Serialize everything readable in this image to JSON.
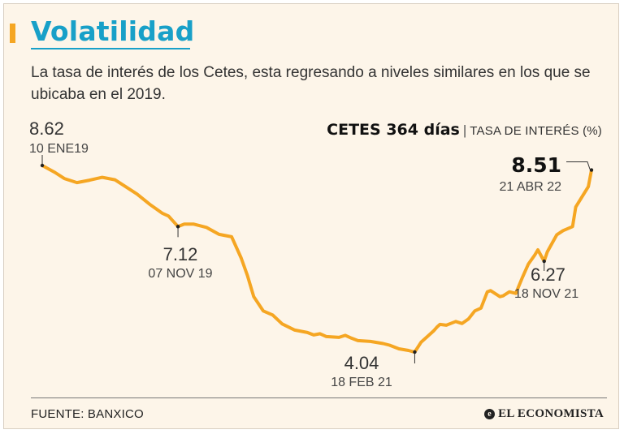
{
  "header": {
    "title": "Volatilidad",
    "subtitle": "La tasa de interés de los Cetes, esta regresando a niveles similares en los que se ubicaba en el 2019."
  },
  "legend": {
    "series": "CETES 364 días",
    "separator": "|",
    "unit": "TASA DE INTERÉS (%)"
  },
  "footer": {
    "source": "FUENTE: BANXICO",
    "brand": "EL ECONOMISTA",
    "brand_icon": "e-logo-icon"
  },
  "colors": {
    "line": "#f5a623",
    "title": "#18a0c8",
    "background": "#fdf5e9"
  },
  "chart_data": {
    "type": "line",
    "title": "CETES 364 días",
    "ylabel": "TASA DE INTERÉS (%)",
    "xlabel": "",
    "xlim": [
      0,
      1218
    ],
    "ylim": [
      3.5,
      9.0
    ],
    "grid": false,
    "series": [
      {
        "name": "CETES 364 días",
        "x": [
          0,
          28,
          49,
          77,
          105,
          133,
          161,
          182,
          210,
          238,
          266,
          280,
          301,
          315,
          336,
          364,
          392,
          420,
          441,
          455,
          469,
          490,
          511,
          532,
          560,
          588,
          602,
          616,
          630,
          658,
          672,
          686,
          700,
          728,
          756,
          770,
          791,
          812,
          826,
          840,
          854,
          868,
          875,
          882,
          896,
          910,
          917,
          931,
          945,
          959,
          973,
          987,
          994,
          1015,
          1022,
          1036,
          1050,
          1064,
          1078,
          1092,
          1099,
          1113,
          1120,
          1141,
          1155,
          1176,
          1183,
          1197,
          1211,
          1218
        ],
        "values": [
          8.62,
          8.45,
          8.3,
          8.2,
          8.26,
          8.33,
          8.27,
          8.12,
          7.92,
          7.67,
          7.45,
          7.38,
          7.12,
          7.18,
          7.18,
          7.1,
          6.93,
          6.87,
          6.35,
          5.92,
          5.4,
          5.05,
          4.95,
          4.73,
          4.58,
          4.52,
          4.46,
          4.49,
          4.42,
          4.4,
          4.45,
          4.38,
          4.32,
          4.3,
          4.25,
          4.21,
          4.12,
          4.08,
          4.04,
          4.28,
          4.42,
          4.56,
          4.65,
          4.72,
          4.7,
          4.76,
          4.79,
          4.74,
          4.85,
          5.05,
          5.12,
          5.52,
          5.55,
          5.4,
          5.42,
          5.52,
          5.48,
          5.85,
          6.2,
          6.42,
          6.55,
          6.27,
          6.5,
          6.92,
          7.02,
          7.12,
          7.6,
          7.85,
          8.1,
          8.51
        ]
      }
    ],
    "annotations": [
      {
        "value_label": "8.62",
        "date_label": "10 ENE19",
        "x": 0,
        "y": 8.62
      },
      {
        "value_label": "7.12",
        "date_label": "07 NOV 19",
        "x": 301,
        "y": 7.12
      },
      {
        "value_label": "4.04",
        "date_label": "18 FEB 21",
        "x": 826,
        "y": 4.04
      },
      {
        "value_label": "6.27",
        "date_label": "18 NOV 21",
        "x": 1113,
        "y": 6.27
      },
      {
        "value_label": "8.51",
        "date_label": "21 ABR 22",
        "x": 1218,
        "y": 8.51
      }
    ]
  }
}
